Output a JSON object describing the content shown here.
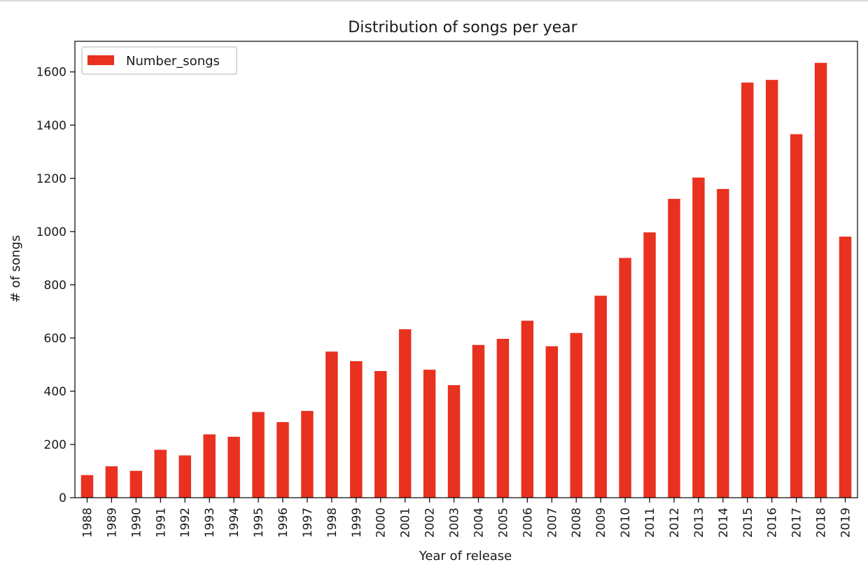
{
  "chart_data": {
    "type": "bar",
    "title": "Distribution of songs per year",
    "xlabel": "Year of release",
    "ylabel": "# of songs",
    "categories": [
      "1988",
      "1989",
      "1990",
      "1991",
      "1992",
      "1993",
      "1994",
      "1995",
      "1996",
      "1997",
      "1998",
      "1999",
      "2000",
      "2001",
      "2002",
      "2003",
      "2004",
      "2005",
      "2006",
      "2007",
      "2008",
      "2009",
      "2010",
      "2011",
      "2012",
      "2013",
      "2014",
      "2015",
      "2016",
      "2017",
      "2018",
      "2019"
    ],
    "series": [
      {
        "name": "Number_songs",
        "color": "#e8311f",
        "values": [
          85,
          118,
          101,
          180,
          159,
          238,
          229,
          322,
          284,
          326,
          549,
          513,
          476,
          633,
          481,
          423,
          574,
          597,
          665,
          569,
          619,
          759,
          901,
          997,
          1123,
          1203,
          1160,
          1560,
          1570,
          1366,
          1634,
          981
        ]
      }
    ],
    "ylim": [
      0,
      1715
    ],
    "yticks": [
      0,
      200,
      400,
      600,
      800,
      1000,
      1200,
      1400,
      1600
    ],
    "grid": false,
    "legend_position": "top-left"
  }
}
